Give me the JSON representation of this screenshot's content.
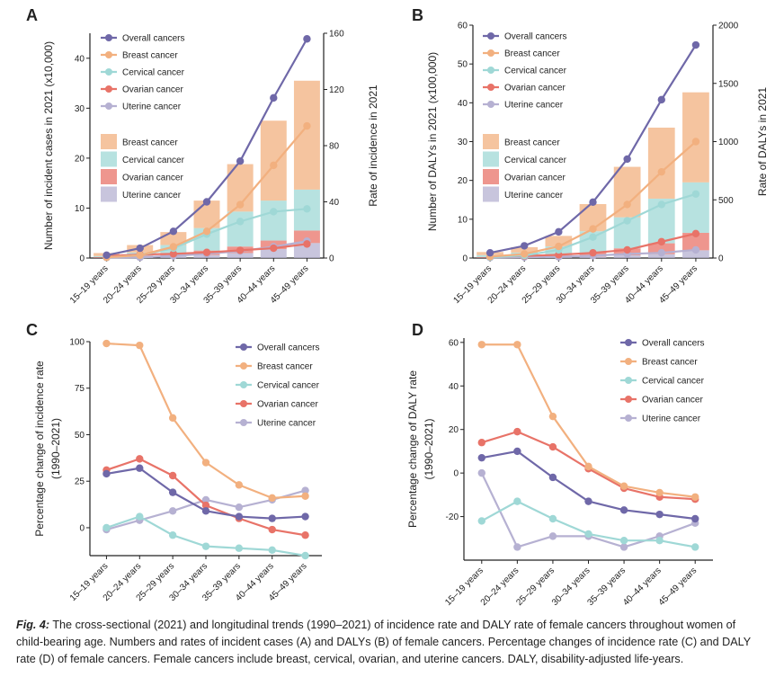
{
  "categories": [
    "15–19 years",
    "20–24 years",
    "25–29 years",
    "30–34 years",
    "35–39 years",
    "40–44 years",
    "45–49 years"
  ],
  "colors": {
    "overall": "#6f68a8",
    "breast": "#f2b07f",
    "cervical": "#9fd8d6",
    "ovarian": "#e87368",
    "uterine": "#b6b1d2"
  },
  "caption": {
    "label": "Fig. 4:",
    "text": " The cross-sectional (2021) and longitudinal trends (1990–2021) of incidence rate and DALY rate of female cancers throughout women of child-bearing age. Numbers and rates of incident cases (A) and DALYs (B) of female cancers. Percentage changes of incidence rate (C) and DALY rate (D) of female cancers. Female cancers include breast, cervical, ovarian, and uterine cancers. DALY, disability-adjusted life-years."
  },
  "chart_data": [
    {
      "panel": "A",
      "type": "bar",
      "ylabel": "Number of incident cases in 2021 (x10,000)",
      "y2label": "Rate of incidence in 2021",
      "ylim": [
        0,
        45
      ],
      "yticks": [
        0,
        10,
        20,
        30,
        40
      ],
      "y2lim": [
        0,
        160
      ],
      "y2ticks": [
        0,
        40,
        80,
        120,
        160
      ],
      "bar_series": [
        {
          "name": "Uterine cancer",
          "values": [
            0.05,
            0.2,
            0.4,
            0.6,
            1.0,
            1.8,
            3.0
          ]
        },
        {
          "name": "Ovarian cancer",
          "values": [
            0.15,
            0.3,
            0.6,
            0.9,
            1.3,
            1.7,
            2.5
          ]
        },
        {
          "name": "Cervical cancer",
          "values": [
            0.2,
            0.6,
            1.6,
            4.5,
            7.0,
            8.0,
            8.2
          ]
        },
        {
          "name": "Breast cancer",
          "values": [
            0.6,
            1.5,
            2.6,
            5.5,
            9.5,
            16.0,
            21.8
          ]
        }
      ],
      "line_series": [
        {
          "name": "Overall cancers",
          "values": [
            2,
            7,
            19,
            40,
            69,
            114,
            156
          ]
        },
        {
          "name": "Breast cancer",
          "values": [
            0.5,
            2,
            8,
            19,
            38,
            66,
            94
          ]
        },
        {
          "name": "Cervical cancer",
          "values": [
            0.5,
            2,
            7,
            17,
            26,
            33,
            35
          ]
        },
        {
          "name": "Ovarian cancer",
          "values": [
            1.5,
            2.5,
            3,
            4,
            5.5,
            7,
            10
          ]
        },
        {
          "name": "Uterine cancer",
          "values": [
            0.3,
            0.5,
            1.5,
            3,
            5,
            8,
            12
          ]
        }
      ]
    },
    {
      "panel": "B",
      "type": "bar",
      "ylabel": "Number of DALYs in 2021 (x100,000)",
      "y2label": "Rate of DALYs in 2021",
      "ylim": [
        0,
        60
      ],
      "yticks": [
        0,
        10,
        20,
        30,
        40,
        50,
        60
      ],
      "y2lim": [
        0,
        2000
      ],
      "y2ticks": [
        0,
        500,
        1000,
        1500,
        2000
      ],
      "bar_series": [
        {
          "name": "Uterine cancer",
          "values": [
            0.05,
            0.1,
            0.2,
            0.4,
            0.7,
            1.0,
            2.0
          ]
        },
        {
          "name": "Ovarian cancer",
          "values": [
            0.2,
            0.3,
            0.5,
            1.0,
            1.8,
            2.8,
            4.5
          ]
        },
        {
          "name": "Cervical cancer",
          "values": [
            0.5,
            1.0,
            2.3,
            5.5,
            8.0,
            11.5,
            13.0
          ]
        },
        {
          "name": "Breast cancer",
          "values": [
            0.8,
            1.4,
            2.7,
            7.0,
            13.0,
            18.3,
            23.2
          ]
        }
      ],
      "line_series": [
        {
          "name": "Overall cancers",
          "values": [
            45,
            105,
            225,
            480,
            850,
            1360,
            1830
          ]
        },
        {
          "name": "Breast cancer",
          "values": [
            12,
            35,
            100,
            250,
            460,
            740,
            1000
          ]
        },
        {
          "name": "Cervical cancer",
          "values": [
            8,
            22,
            70,
            180,
            320,
            460,
            550
          ]
        },
        {
          "name": "Ovarian cancer",
          "values": [
            10,
            18,
            28,
            45,
            70,
            140,
            210
          ]
        },
        {
          "name": "Uterine cancer",
          "values": [
            5,
            8,
            10,
            20,
            35,
            45,
            70
          ]
        }
      ]
    },
    {
      "panel": "C",
      "type": "line",
      "ylabel": "Percentage change of incidence rate",
      "ylabel2": "(1990–2021)",
      "ylim": [
        -15,
        100
      ],
      "yticks": [
        0,
        25,
        50,
        75,
        100
      ],
      "series": [
        {
          "name": "Overall cancers",
          "values": [
            29,
            32,
            19,
            9,
            6,
            5,
            6
          ]
        },
        {
          "name": "Breast cancer",
          "values": [
            99,
            98,
            59,
            35,
            23,
            16,
            17
          ]
        },
        {
          "name": "Cervical cancer",
          "values": [
            0,
            6,
            -4,
            -10,
            -11,
            -12,
            -15
          ]
        },
        {
          "name": "Ovarian cancer",
          "values": [
            31,
            37,
            28,
            12,
            5,
            -1,
            -4
          ]
        },
        {
          "name": "Uterine cancer",
          "values": [
            -1,
            4,
            9,
            15,
            11,
            15,
            20
          ]
        }
      ]
    },
    {
      "panel": "D",
      "type": "line",
      "ylabel": "Percentage change of DALY rate",
      "ylabel2": "(1990–2021)",
      "ylim": [
        -40,
        62
      ],
      "yticks": [
        -20,
        0,
        20,
        40,
        60
      ],
      "series": [
        {
          "name": "Overall cancers",
          "values": [
            7,
            10,
            -2,
            -13,
            -17,
            -19,
            -21
          ]
        },
        {
          "name": "Breast cancer",
          "values": [
            59,
            59,
            26,
            3,
            -6,
            -9,
            -11
          ]
        },
        {
          "name": "Cervical cancer",
          "values": [
            -22,
            -13,
            -21,
            -28,
            -31,
            -31,
            -34
          ]
        },
        {
          "name": "Ovarian cancer",
          "values": [
            14,
            19,
            12,
            2,
            -7,
            -11,
            -12
          ]
        },
        {
          "name": "Uterine cancer",
          "values": [
            0,
            -34,
            -29,
            -29,
            -34,
            -29,
            -23
          ]
        }
      ]
    }
  ]
}
